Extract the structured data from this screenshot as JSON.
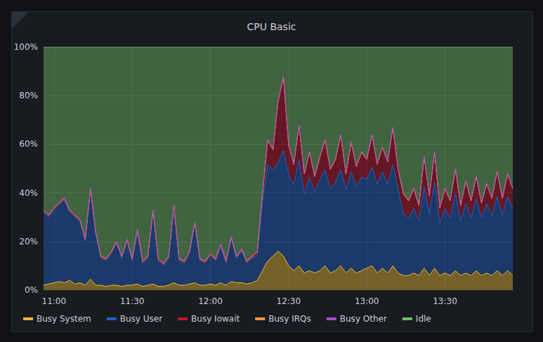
{
  "chart_data": {
    "type": "area",
    "title": "CPU Basic",
    "stacked": true,
    "grid": true,
    "legend": "bottom-left",
    "categories": [
      null,
      null,
      "11:00",
      null,
      null,
      null,
      null,
      null,
      null,
      null,
      null,
      null,
      null,
      null,
      null,
      null,
      null,
      "11:30",
      null,
      null,
      null,
      null,
      null,
      null,
      null,
      null,
      null,
      null,
      null,
      null,
      null,
      null,
      "12:00",
      null,
      null,
      null,
      null,
      null,
      null,
      null,
      null,
      null,
      null,
      null,
      null,
      null,
      null,
      "12:30",
      null,
      null,
      null,
      null,
      null,
      null,
      null,
      null,
      null,
      null,
      null,
      null,
      null,
      null,
      "13:00",
      null,
      null,
      null,
      null,
      null,
      null,
      null,
      null,
      null,
      null,
      null,
      null,
      null,
      null,
      "13:30",
      null,
      null,
      null,
      null,
      null,
      null,
      null,
      null,
      null,
      null,
      null,
      null,
      null
    ],
    "ylim": [
      0,
      100
    ],
    "yticks": [
      {
        "value": 0,
        "label": "0%"
      },
      {
        "value": 20,
        "label": "20%"
      },
      {
        "value": 40,
        "label": "40%"
      },
      {
        "value": 60,
        "label": "60%"
      },
      {
        "value": 80,
        "label": "80%"
      },
      {
        "value": 100,
        "label": "100%"
      }
    ],
    "series": [
      {
        "name": "Busy System",
        "color": "#EAB839",
        "values": [
          2,
          2.5,
          3,
          3.5,
          3,
          4,
          2.5,
          3,
          2,
          4.5,
          2,
          2,
          1.5,
          2,
          2,
          1.5,
          2,
          2,
          2.5,
          1.5,
          2,
          2.5,
          1.5,
          1.5,
          2,
          3,
          2,
          2,
          2.5,
          3,
          2,
          2,
          2.5,
          2,
          3,
          2,
          3.5,
          3,
          3,
          2.5,
          3,
          4,
          8,
          12,
          14,
          16,
          14,
          10,
          8,
          10,
          7,
          8,
          7,
          8,
          10,
          7,
          8,
          10,
          7,
          9,
          7,
          8,
          9,
          10,
          7,
          9,
          7,
          10,
          7,
          6,
          6,
          7,
          6,
          9,
          6,
          9,
          6,
          7,
          6,
          8,
          6,
          7,
          6,
          8,
          6,
          7,
          6,
          8,
          6,
          8,
          6
        ]
      },
      {
        "name": "Busy User",
        "color": "#1F60C4",
        "values": [
          30,
          27.5,
          30,
          31.5,
          34,
          28,
          27.5,
          25,
          18,
          36.5,
          21,
          11,
          10.5,
          13,
          17,
          11.5,
          18,
          10,
          21.5,
          9.5,
          11,
          29.5,
          10.5,
          8.5,
          11,
          31,
          10,
          9,
          12.5,
          24,
          10,
          9,
          11.5,
          10,
          15,
          9,
          17.5,
          10,
          13,
          8.5,
          10,
          10.5,
          28.5,
          39.5,
          35.5,
          36.5,
          43.5,
          37.5,
          35.5,
          43.5,
          32.5,
          38.5,
          33.5,
          37.5,
          39.5,
          34.5,
          36.5,
          39.5,
          34.5,
          39.5,
          35.5,
          38.5,
          36.5,
          40.5,
          36.5,
          39.5,
          36.5,
          41.5,
          34.5,
          25.5,
          23.5,
          26.5,
          22.5,
          33.5,
          25.5,
          35.5,
          21.5,
          26.5,
          23.5,
          31.5,
          22.5,
          28.5,
          23.5,
          29.5,
          23.5,
          28.5,
          24.5,
          30.5,
          24.5,
          30.5,
          27.5
        ]
      },
      {
        "name": "Busy Iowait",
        "color": "#C4162A",
        "values": [
          0.5,
          0.5,
          0.5,
          0.5,
          0.5,
          0.5,
          0.5,
          0.5,
          0.5,
          0.5,
          0.5,
          0.5,
          0.5,
          0.5,
          0.5,
          0.5,
          0.5,
          0.5,
          0.5,
          0.5,
          0.5,
          0.5,
          0.5,
          0.5,
          0.5,
          0.5,
          0.5,
          0.5,
          0.5,
          0.5,
          0.5,
          0.5,
          0.5,
          0.5,
          0.5,
          0.5,
          0.5,
          0.5,
          0.5,
          0.5,
          0.5,
          1,
          3,
          10,
          8,
          25,
          30,
          12,
          8,
          14,
          8,
          10,
          6,
          9,
          12,
          8,
          9,
          14,
          6,
          12,
          8,
          10,
          8,
          13,
          8,
          10,
          9,
          15,
          8,
          8,
          7,
          8,
          6,
          12,
          7,
          12,
          6,
          8,
          7,
          10,
          6,
          9,
          7,
          9,
          6,
          8,
          7,
          10,
          7,
          9,
          8
        ]
      },
      {
        "name": "Busy IRQs",
        "color": "#FF9830",
        "values": [
          0.3,
          0.3,
          0.3,
          0.3,
          0.3,
          0.3,
          0.3,
          0.3,
          0.3,
          0.3,
          0.3,
          0.3,
          0.3,
          0.3,
          0.3,
          0.3,
          0.3,
          0.3,
          0.3,
          0.3,
          0.3,
          0.3,
          0.3,
          0.3,
          0.3,
          0.3,
          0.3,
          0.3,
          0.3,
          0.3,
          0.3,
          0.3,
          0.3,
          0.3,
          0.3,
          0.3,
          0.3,
          0.3,
          0.3,
          0.3,
          0.3,
          0.3,
          0.3,
          0.3,
          0.3,
          0.3,
          0.3,
          0.3,
          0.3,
          0.3,
          0.3,
          0.3,
          0.3,
          0.3,
          0.3,
          0.3,
          0.3,
          0.3,
          0.3,
          0.3,
          0.3,
          0.3,
          0.3,
          0.3,
          0.3,
          0.3,
          0.3,
          0.3,
          0.3,
          0.3,
          0.3,
          0.3,
          0.3,
          0.3,
          0.3,
          0.3,
          0.3,
          0.3,
          0.3,
          0.3,
          0.3,
          0.3,
          0.3,
          0.3,
          0.3,
          0.3,
          0.3,
          0.3,
          0.3,
          0.3,
          0.3
        ]
      },
      {
        "name": "Busy Other",
        "color": "#A352CC",
        "values": [
          0.2,
          0.2,
          0.2,
          0.2,
          0.2,
          0.2,
          0.2,
          0.2,
          0.2,
          0.2,
          0.2,
          0.2,
          0.2,
          0.2,
          0.2,
          0.2,
          0.2,
          0.2,
          0.2,
          0.2,
          0.2,
          0.2,
          0.2,
          0.2,
          0.2,
          0.2,
          0.2,
          0.2,
          0.2,
          0.2,
          0.2,
          0.2,
          0.2,
          0.2,
          0.2,
          0.2,
          0.2,
          0.2,
          0.2,
          0.2,
          0.2,
          0.2,
          0.2,
          0.2,
          0.2,
          0.2,
          0.2,
          0.2,
          0.2,
          0.2,
          0.2,
          0.2,
          0.2,
          0.2,
          0.2,
          0.2,
          0.2,
          0.2,
          0.2,
          0.2,
          0.2,
          0.2,
          0.2,
          0.2,
          0.2,
          0.2,
          0.2,
          0.2,
          0.2,
          0.2,
          0.2,
          0.2,
          0.2,
          0.2,
          0.2,
          0.2,
          0.2,
          0.2,
          0.2,
          0.2,
          0.2,
          0.2,
          0.2,
          0.2,
          0.2,
          0.2,
          0.2,
          0.2,
          0.2,
          0.2,
          0.2
        ]
      },
      {
        "name": "Idle",
        "color": "#73BF69",
        "values": [
          67,
          69,
          66,
          64,
          62,
          67,
          69,
          71,
          79,
          58,
          76,
          86,
          87,
          84,
          80,
          86,
          79,
          87,
          75,
          88,
          86,
          67,
          87,
          89,
          86,
          65,
          87,
          88,
          84,
          72,
          87,
          88,
          85,
          87,
          81,
          88,
          78,
          86,
          83,
          88,
          86,
          84,
          60,
          38,
          42,
          22,
          12,
          40,
          48,
          32,
          52,
          43,
          53,
          45,
          38,
          50,
          46,
          36,
          52,
          39,
          49,
          43,
          46,
          36,
          48,
          41,
          47,
          33,
          50,
          60,
          63,
          58,
          65,
          45,
          61,
          43,
          66,
          58,
          63,
          50,
          65,
          55,
          63,
          53,
          64,
          56,
          62,
          51,
          62,
          52,
          58
        ]
      }
    ]
  }
}
